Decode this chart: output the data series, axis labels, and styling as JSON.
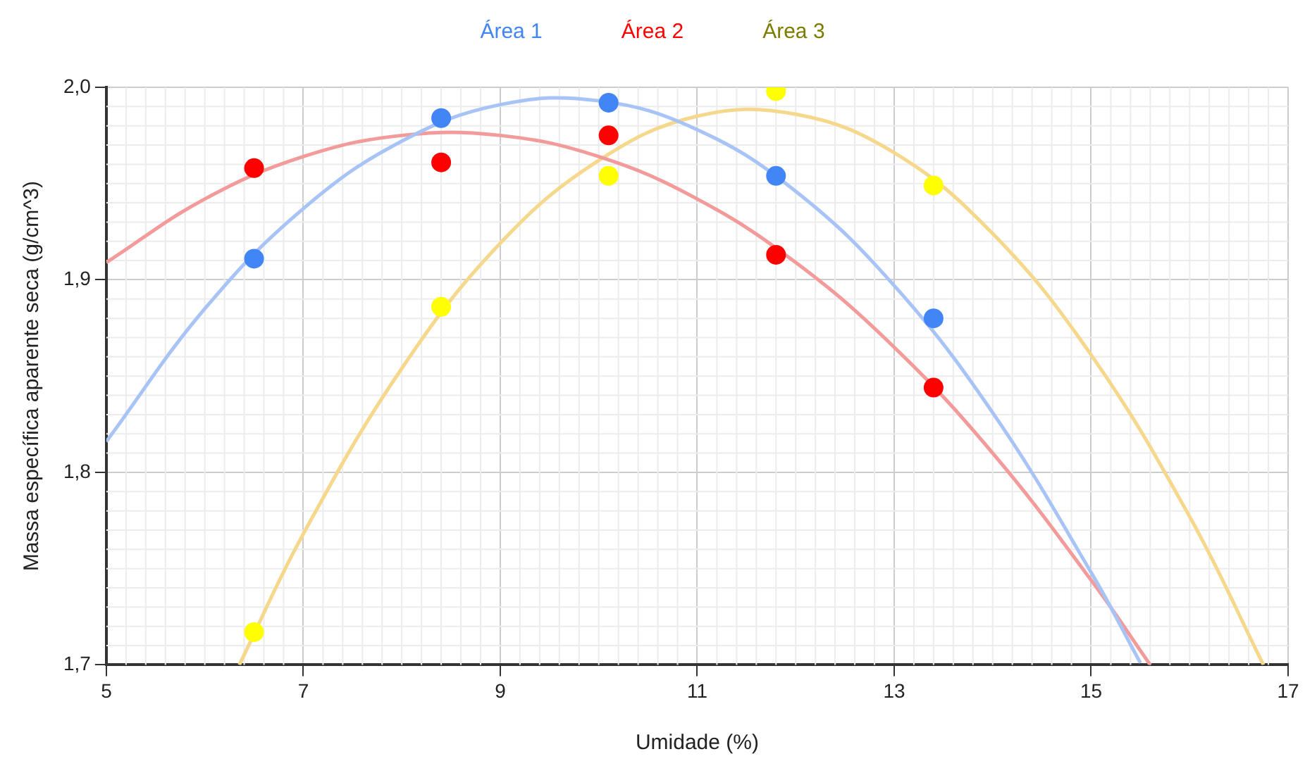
{
  "chart_data": {
    "type": "scatter",
    "xlabel": "Umidade (%)",
    "ylabel": "Massa específica aparente seca (g/cm^3)",
    "xlim": [
      5,
      17
    ],
    "xticks": [
      5,
      7,
      9,
      11,
      13,
      15,
      17
    ],
    "ylim": [
      1.7,
      2.0
    ],
    "yticks": [
      {
        "value": 1.7,
        "label": "1,7"
      },
      {
        "value": 1.8,
        "label": "1,8"
      },
      {
        "value": 1.9,
        "label": "1,9"
      },
      {
        "value": 2.0,
        "label": "2,0"
      }
    ],
    "grid": true,
    "legend": "top",
    "series": [
      {
        "name": "Área 1",
        "marker": "circle",
        "color": "#4285f4",
        "x": [
          6.5,
          8.4,
          10.1,
          11.8,
          13.4
        ],
        "values": [
          1.911,
          1.984,
          1.992,
          1.954,
          1.88
        ]
      },
      {
        "name": "Área 2",
        "marker": "circle",
        "color": "#ff0000",
        "x": [
          6.5,
          8.4,
          10.1,
          11.8,
          13.4
        ],
        "values": [
          1.958,
          1.961,
          1.975,
          1.913,
          1.844
        ]
      },
      {
        "name": "Área 3",
        "marker": "circle",
        "color": "#ffff00",
        "x": [
          6.5,
          8.4,
          10.1,
          11.8,
          13.4
        ],
        "values": [
          1.717,
          1.886,
          1.954,
          1.998,
          1.949
        ]
      },
      {
        "type": "line",
        "marker": "none",
        "color": "#a8c4f7",
        "x": [
          5,
          6,
          7,
          8,
          9,
          10,
          11,
          12,
          13,
          14,
          15,
          15.5
        ],
        "values": [
          1.816,
          1.885,
          1.937,
          1.972,
          1.991,
          1.993,
          1.978,
          1.946,
          1.897,
          1.831,
          1.748,
          1.701
        ]
      },
      {
        "type": "line",
        "marker": "none",
        "color": "#f39a9a",
        "x": [
          5,
          6,
          7,
          8,
          9,
          10,
          11,
          12,
          13,
          14,
          15,
          15.6
        ],
        "values": [
          1.909,
          1.942,
          1.964,
          1.975,
          1.975,
          1.964,
          1.942,
          1.909,
          1.865,
          1.81,
          1.744,
          1.7
        ]
      },
      {
        "type": "line",
        "marker": "none",
        "color": "#f5d88c",
        "x": [
          6.35,
          7,
          8,
          9,
          10,
          11,
          12,
          13,
          14,
          15,
          16,
          16.75
        ],
        "values": [
          1.7,
          1.768,
          1.854,
          1.919,
          1.962,
          1.985,
          1.986,
          1.966,
          1.924,
          1.861,
          1.777,
          1.7
        ]
      }
    ]
  }
}
